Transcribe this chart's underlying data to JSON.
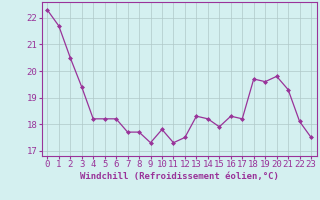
{
  "x": [
    0,
    1,
    2,
    3,
    4,
    5,
    6,
    7,
    8,
    9,
    10,
    11,
    12,
    13,
    14,
    15,
    16,
    17,
    18,
    19,
    20,
    21,
    22,
    23
  ],
  "y": [
    22.3,
    21.7,
    20.5,
    19.4,
    18.2,
    18.2,
    18.2,
    17.7,
    17.7,
    17.3,
    17.8,
    17.3,
    17.5,
    18.3,
    18.2,
    17.9,
    18.3,
    18.2,
    19.7,
    19.6,
    19.8,
    19.3,
    18.1,
    17.5
  ],
  "line_color": "#993399",
  "marker": "D",
  "marker_size": 2,
  "bg_color": "#d4f0f0",
  "grid_color": "#b0c8c8",
  "xlabel": "Windchill (Refroidissement éolien,°C)",
  "xlabel_color": "#993399",
  "tick_color": "#993399",
  "ylim": [
    16.8,
    22.6
  ],
  "xlim": [
    -0.5,
    23.5
  ],
  "yticks": [
    17,
    18,
    19,
    20,
    21,
    22
  ],
  "xticks": [
    0,
    1,
    2,
    3,
    4,
    5,
    6,
    7,
    8,
    9,
    10,
    11,
    12,
    13,
    14,
    15,
    16,
    17,
    18,
    19,
    20,
    21,
    22,
    23
  ],
  "line_width": 0.9,
  "font_size": 6.5
}
